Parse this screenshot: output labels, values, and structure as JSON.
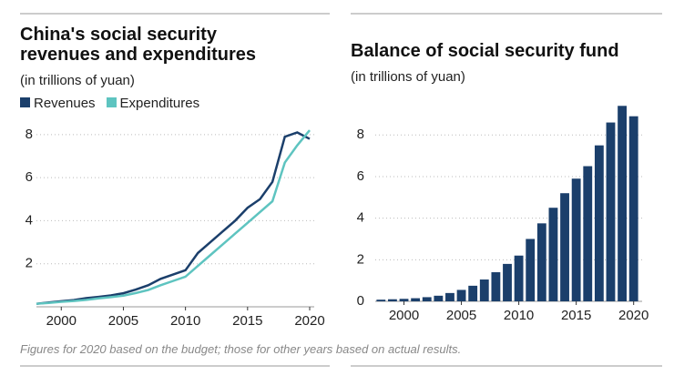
{
  "chart_data": [
    {
      "type": "line",
      "title": "China's social security revenues and expenditures",
      "subtitle": "(in trillions of yuan)",
      "x": [
        1998,
        1999,
        2000,
        2001,
        2002,
        2003,
        2004,
        2005,
        2006,
        2007,
        2008,
        2009,
        2010,
        2011,
        2012,
        2013,
        2014,
        2015,
        2016,
        2017,
        2018,
        2019,
        2020
      ],
      "series": [
        {
          "name": "Revenues",
          "color": "#1b3f6b",
          "values": [
            0.14,
            0.2,
            0.26,
            0.31,
            0.4,
            0.46,
            0.53,
            0.63,
            0.8,
            1.0,
            1.3,
            1.5,
            1.7,
            2.5,
            3.0,
            3.5,
            4.0,
            4.6,
            5.0,
            5.8,
            7.9,
            8.1,
            7.8
          ]
        },
        {
          "name": "Expenditures",
          "color": "#5ec4c0",
          "values": [
            0.14,
            0.18,
            0.23,
            0.27,
            0.32,
            0.39,
            0.45,
            0.52,
            0.64,
            0.78,
            1.0,
            1.2,
            1.4,
            1.9,
            2.4,
            2.9,
            3.4,
            3.9,
            4.4,
            4.9,
            6.7,
            7.5,
            8.2
          ]
        }
      ],
      "xlim": [
        1998,
        2020
      ],
      "xticks": [
        2000,
        2005,
        2010,
        2015,
        2020
      ],
      "ylim": [
        0,
        8.5
      ],
      "yticks": [
        2,
        4,
        6,
        8
      ],
      "grid": true
    },
    {
      "type": "bar",
      "title": "Balance of social security fund",
      "subtitle": "(in trillions of yuan)",
      "x": [
        1998,
        1999,
        2000,
        2001,
        2002,
        2003,
        2004,
        2005,
        2006,
        2007,
        2008,
        2009,
        2010,
        2011,
        2012,
        2013,
        2014,
        2015,
        2016,
        2017,
        2018,
        2019,
        2020
      ],
      "values": [
        0.08,
        0.1,
        0.12,
        0.15,
        0.2,
        0.27,
        0.4,
        0.55,
        0.75,
        1.05,
        1.4,
        1.8,
        2.2,
        3.0,
        3.75,
        4.5,
        5.2,
        5.9,
        6.5,
        7.5,
        8.6,
        9.4,
        8.9
      ],
      "color": "#1b3f6b",
      "xlim": [
        1997.5,
        2020.5
      ],
      "xticks": [
        2000,
        2005,
        2010,
        2015,
        2020
      ],
      "ylim": [
        0,
        9.5
      ],
      "yticks": [
        0,
        2,
        4,
        6,
        8
      ],
      "grid": true
    }
  ],
  "footnote": "Figures for 2020 based on the budget; those for other years based on actual results."
}
